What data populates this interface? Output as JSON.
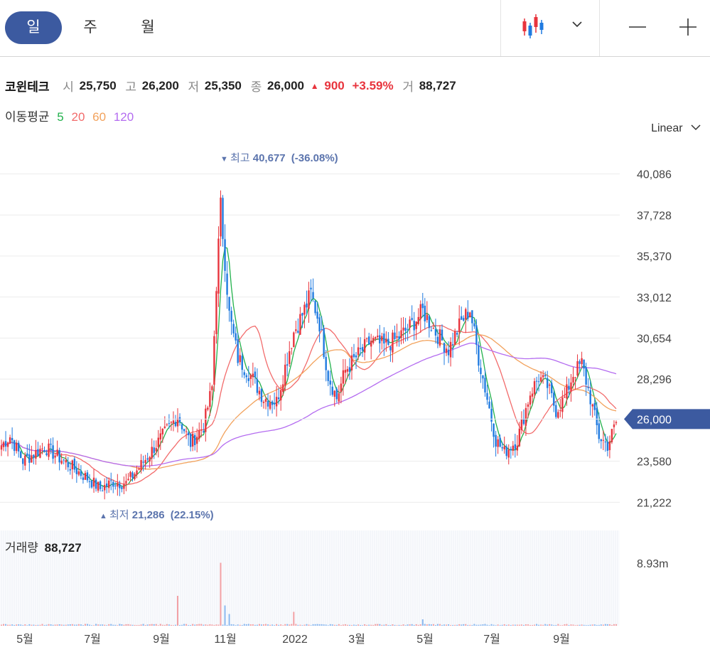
{
  "tabs": [
    "일",
    "주",
    "월"
  ],
  "active_tab": 0,
  "toolbar": {
    "chart_type_icon": "candlestick-icon",
    "zoom_out_icon": "minus-icon",
    "zoom_in_icon": "plus-icon"
  },
  "quote": {
    "name": "코윈테크",
    "open_label": "시",
    "open": "25,750",
    "high_label": "고",
    "high": "26,200",
    "low_label": "저",
    "low": "25,350",
    "close_label": "종",
    "close": "26,000",
    "change": "900",
    "change_pct": "+3.59%",
    "volume_label": "거",
    "volume": "88,727"
  },
  "moving_average": {
    "label": "이동평균",
    "periods": [
      "5",
      "20",
      "60",
      "120"
    ]
  },
  "scale": "Linear",
  "colors": {
    "up": "#e8343d",
    "down": "#1f7ae0",
    "accent": "#3c5aa0",
    "ma5": "#22b14c",
    "ma20": "#f26b6b",
    "ma60": "#f2a25c",
    "ma120": "#b46cf0",
    "annotation": "#5b74ad"
  },
  "chart_data": {
    "type": "candlestick",
    "y_ticks": [
      "40,086",
      "37,728",
      "35,370",
      "33,012",
      "30,654",
      "28,296",
      "23,580",
      "21,222"
    ],
    "current_price_tag": "26,000",
    "x_ticks": [
      "5월",
      "7월",
      "9월",
      "11월",
      "2022",
      "3월",
      "5월",
      "7월",
      "9월"
    ],
    "high_marker": {
      "label": "최고",
      "value": "40,677",
      "pct": "(-36.08%)"
    },
    "low_marker": {
      "label": "최저",
      "value": "21,286",
      "pct": "(22.15%)"
    },
    "volume_label": "거래량",
    "volume_value": "88,727",
    "volume_axis_tick": "8.93m",
    "ylim": [
      20500,
      41500
    ],
    "anchors": [
      [
        0,
        24500
      ],
      [
        4,
        25000
      ],
      [
        10,
        23600
      ],
      [
        20,
        24400
      ],
      [
        30,
        23500
      ],
      [
        40,
        22600
      ],
      [
        46,
        22000
      ],
      [
        52,
        22400
      ],
      [
        58,
        22300
      ],
      [
        64,
        23200
      ],
      [
        70,
        24200
      ],
      [
        76,
        25200
      ],
      [
        82,
        26200
      ],
      [
        88,
        24600
      ],
      [
        94,
        25600
      ],
      [
        98,
        27800
      ],
      [
        100,
        33800
      ],
      [
        102,
        38200
      ],
      [
        106,
        32000
      ],
      [
        110,
        29500
      ],
      [
        116,
        28500
      ],
      [
        122,
        27200
      ],
      [
        128,
        27000
      ],
      [
        132,
        29000
      ],
      [
        136,
        31000
      ],
      [
        140,
        32000
      ],
      [
        144,
        33200
      ],
      [
        148,
        31500
      ],
      [
        152,
        28500
      ],
      [
        156,
        27200
      ],
      [
        160,
        28800
      ],
      [
        166,
        29700
      ],
      [
        172,
        30500
      ],
      [
        178,
        30200
      ],
      [
        184,
        30600
      ],
      [
        190,
        31300
      ],
      [
        196,
        32200
      ],
      [
        202,
        31000
      ],
      [
        208,
        30000
      ],
      [
        214,
        31600
      ],
      [
        218,
        32300
      ],
      [
        222,
        29500
      ],
      [
        226,
        27200
      ],
      [
        230,
        24800
      ],
      [
        234,
        24100
      ],
      [
        240,
        24800
      ],
      [
        246,
        27500
      ],
      [
        250,
        28400
      ],
      [
        254,
        27900
      ],
      [
        258,
        26500
      ],
      [
        262,
        27200
      ],
      [
        266,
        28600
      ],
      [
        270,
        29200
      ],
      [
        274,
        27200
      ],
      [
        278,
        25000
      ],
      [
        282,
        24500
      ],
      [
        286,
        25800
      ]
    ],
    "volume_spikes": [
      [
        82,
        2.8
      ],
      [
        102,
        5.9
      ],
      [
        104,
        1.9
      ],
      [
        106,
        1.1
      ],
      [
        136,
        1.3
      ],
      [
        196,
        0.6
      ]
    ]
  }
}
